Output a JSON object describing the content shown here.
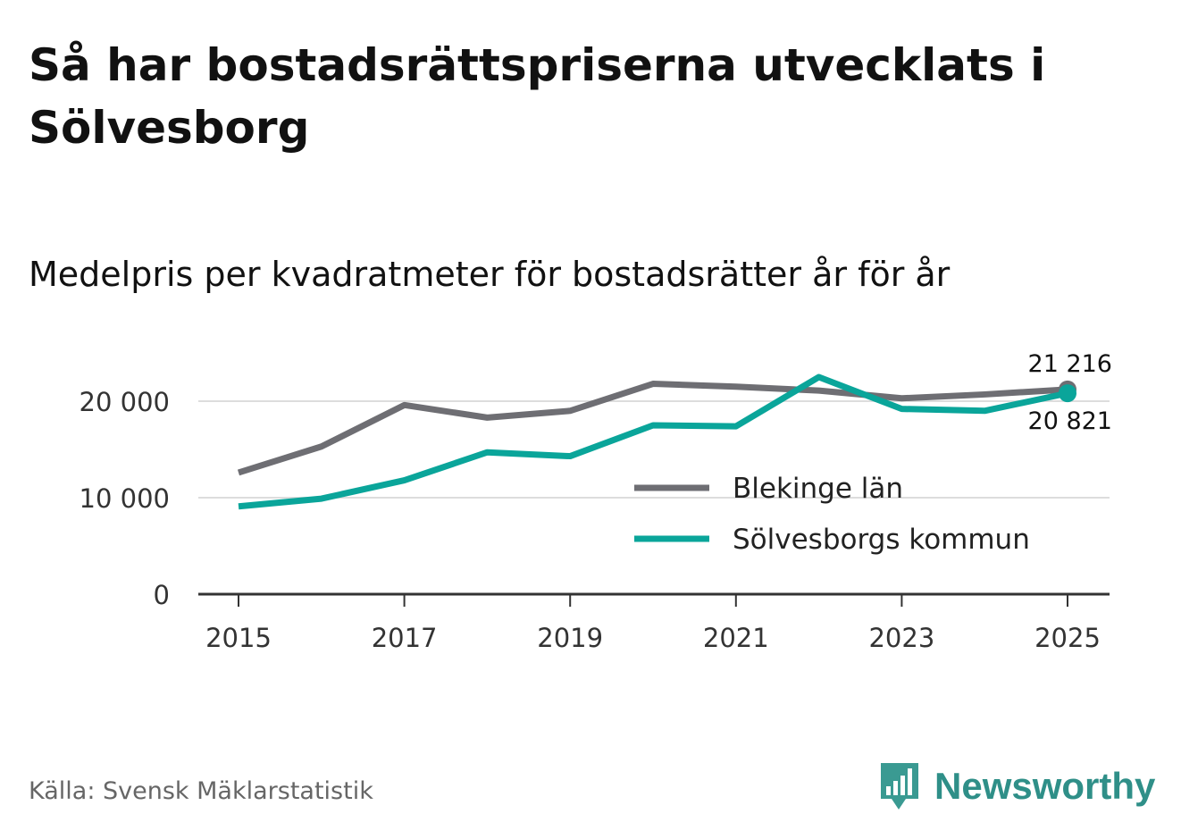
{
  "chart_data": {
    "type": "line",
    "title": "Så har bostadsrättspriserna utvecklats i Sölvesborg",
    "subtitle": "Medelpris per kvadratmeter för bostadsrätter år för år",
    "x": [
      2015,
      2016,
      2017,
      2018,
      2019,
      2020,
      2021,
      2022,
      2023,
      2024,
      2025
    ],
    "x_ticks": [
      "2015",
      "2017",
      "2019",
      "2021",
      "2023",
      "2025"
    ],
    "y_ticks": [
      {
        "value": 0,
        "label": "0"
      },
      {
        "value": 10000,
        "label": "10 000"
      },
      {
        "value": 20000,
        "label": "20 000"
      }
    ],
    "ylim": [
      0,
      22000
    ],
    "series": [
      {
        "name": "Blekinge län",
        "color": "#6e6e73",
        "values": [
          12600,
          15300,
          19600,
          18300,
          19000,
          21800,
          21500,
          21100,
          20300,
          20700,
          21216
        ]
      },
      {
        "name": "Sölvesborgs kommun",
        "color": "#0aa59a",
        "values": [
          9100,
          9900,
          11800,
          14700,
          14300,
          17500,
          17400,
          22500,
          19200,
          19000,
          20821
        ]
      }
    ],
    "end_labels": {
      "Blekinge län": "21 216",
      "Sölvesborgs kommun": "20 821"
    },
    "legend_position": "right-inside"
  },
  "source": "Källa: Svensk Mäklarstatistik",
  "brand": {
    "name": "Newsworthy",
    "color": "#2f8f88",
    "icon": "newsworthy-logo-icon"
  }
}
